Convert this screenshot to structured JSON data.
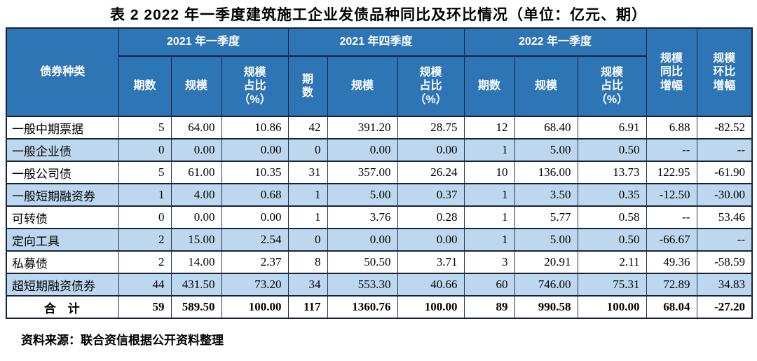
{
  "title": "表 2  2022 年一季度建筑施工企业发债品种同比及环比情况（单位：亿元、期）",
  "table": {
    "corner_header": "债券种类",
    "groups": [
      {
        "label": "2021 年一季度",
        "cols": [
          "期数",
          "规模",
          "规模\n占比\n（%）"
        ]
      },
      {
        "label": "2021 年四季度",
        "cols": [
          "期\n数",
          "规模",
          "规模\n占比\n（%）"
        ]
      },
      {
        "label": "2022 年一季度",
        "cols": [
          "期数",
          "规模",
          "规模\n占比\n（%）"
        ]
      }
    ],
    "tail_headers": [
      "规模\n同比\n增幅",
      "规模\n环比\n增幅"
    ],
    "rows": [
      {
        "label": "一般中期票据",
        "values": [
          "5",
          "64.00",
          "10.86",
          "42",
          "391.20",
          "28.75",
          "12",
          "68.40",
          "6.91",
          "6.88",
          "-82.52"
        ]
      },
      {
        "label": "一般企业债",
        "values": [
          "0",
          "0.00",
          "0.00",
          "0",
          "0.00",
          "0.00",
          "1",
          "5.00",
          "0.50",
          "--",
          "--"
        ]
      },
      {
        "label": "一般公司债",
        "values": [
          "5",
          "61.00",
          "10.35",
          "31",
          "357.00",
          "26.24",
          "10",
          "136.00",
          "13.73",
          "122.95",
          "-61.90"
        ]
      },
      {
        "label": "一般短期融资券",
        "values": [
          "1",
          "4.00",
          "0.68",
          "1",
          "5.00",
          "0.37",
          "1",
          "3.50",
          "0.35",
          "-12.50",
          "-30.00"
        ]
      },
      {
        "label": "可转债",
        "values": [
          "0",
          "0.00",
          "0.00",
          "1",
          "3.76",
          "0.28",
          "1",
          "5.77",
          "0.58",
          "--",
          "53.46"
        ]
      },
      {
        "label": "定向工具",
        "values": [
          "2",
          "15.00",
          "2.54",
          "0",
          "0.00",
          "0.00",
          "1",
          "5.00",
          "0.50",
          "-66.67",
          "--"
        ]
      },
      {
        "label": "私募债",
        "values": [
          "2",
          "14.00",
          "2.37",
          "8",
          "50.50",
          "3.71",
          "3",
          "20.91",
          "2.11",
          "49.36",
          "-58.59"
        ]
      },
      {
        "label": "超短期融资债券",
        "values": [
          "44",
          "431.50",
          "73.20",
          "34",
          "553.30",
          "40.66",
          "60",
          "746.00",
          "75.31",
          "72.89",
          "34.83"
        ]
      }
    ],
    "total_row": {
      "label": "合　计",
      "values": [
        "59",
        "589.50",
        "100.00",
        "117",
        "1360.76",
        "100.00",
        "89",
        "990.58",
        "100.00",
        "68.04",
        "-27.20"
      ]
    }
  },
  "source": "资料来源：联合资信根据公开资料整理",
  "colors": {
    "header_bg": "#2e75b6",
    "header_text": "#ffffff",
    "row_alt_bg": "#bdd7ee",
    "border": "#14243e",
    "text": "#000000"
  }
}
